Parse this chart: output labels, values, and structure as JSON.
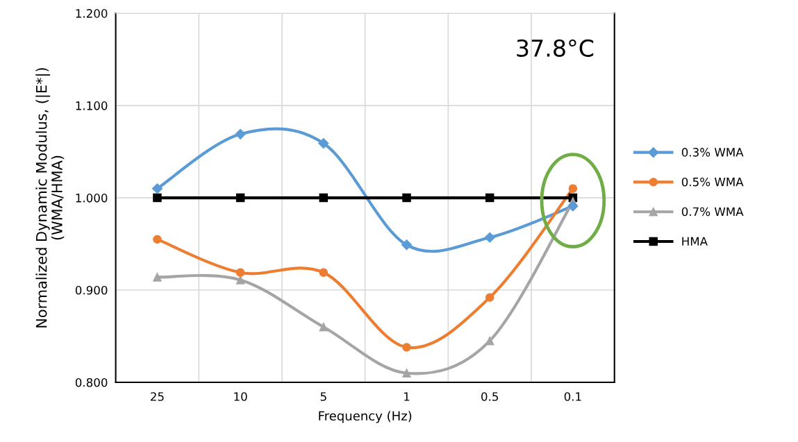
{
  "chart_data": {
    "type": "line",
    "xlabel": "Frequency (Hz)",
    "ylabel": "Normalized Dynamic Modulus, (|E*|)\n(WMA/HMA)",
    "categories": [
      "25",
      "10",
      "5",
      "1",
      "0.5",
      "0.1"
    ],
    "series": [
      {
        "name": "0.3% WMA",
        "color": "#5b9bd5",
        "marker": "diamond",
        "values": [
          1.01,
          1.069,
          1.059,
          0.949,
          0.957,
          0.991
        ]
      },
      {
        "name": "0.5% WMA",
        "color": "#ed7d31",
        "marker": "circle",
        "values": [
          0.955,
          0.919,
          0.919,
          0.838,
          0.892,
          1.01
        ]
      },
      {
        "name": "0.7% WMA",
        "color": "#a5a5a5",
        "marker": "triangle",
        "values": [
          0.914,
          0.911,
          0.86,
          0.81,
          0.845,
          0.996
        ]
      },
      {
        "name": "HMA",
        "color": "#000000",
        "marker": "square",
        "values": [
          1.0,
          1.0,
          1.0,
          1.0,
          1.0,
          1.0
        ]
      }
    ],
    "ylim": [
      0.8,
      1.2
    ],
    "yticks": [
      {
        "value": 0.8,
        "label": "0.800"
      },
      {
        "value": 0.9,
        "label": "0.900"
      },
      {
        "value": 1.0,
        "label": "1.000"
      },
      {
        "value": 1.1,
        "label": "1.100"
      },
      {
        "value": 1.2,
        "label": "1.200"
      }
    ],
    "annotations": [
      "37.8°C"
    ],
    "grid": true,
    "legend": "right"
  }
}
